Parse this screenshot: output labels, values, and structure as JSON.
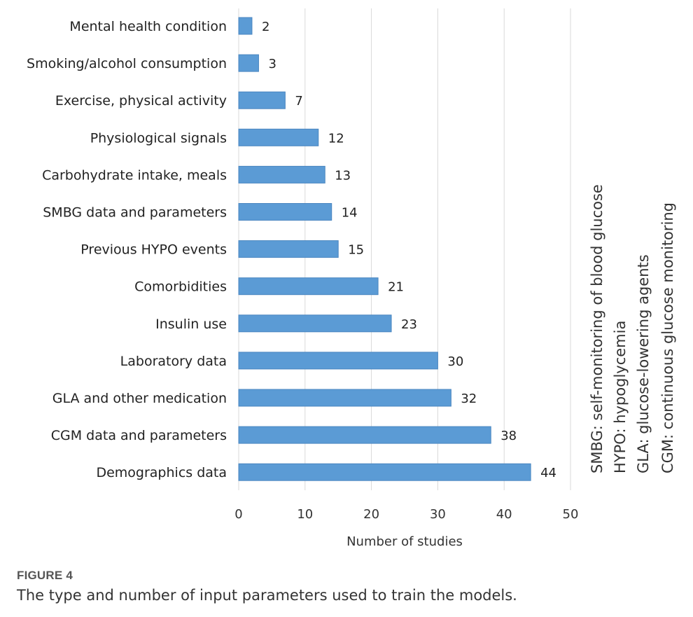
{
  "chart_data": {
    "type": "bar",
    "orientation": "horizontal",
    "categories": [
      "Mental health condition",
      "Smoking/alcohol consumption",
      "Exercise, physical activity",
      "Physiological signals",
      "Carbohydrate intake, meals",
      "SMBG data and parameters",
      "Previous HYPO events",
      "Comorbidities",
      "Insulin use",
      "Laboratory data",
      "GLA and other medication",
      "CGM data and parameters",
      "Demographics data"
    ],
    "values": [
      2,
      3,
      7,
      12,
      13,
      14,
      15,
      21,
      23,
      30,
      32,
      38,
      44
    ],
    "xlabel": "Number of studies",
    "xlim": [
      0,
      50
    ],
    "xticks": [
      0,
      10,
      20,
      30,
      40,
      50
    ],
    "grid": "vertical",
    "bar_color": "#5b9bd5",
    "bar_edge_color": "#4a86c0",
    "data_labels": true,
    "notes": [
      "SMBG: self-monitoring of blood glucose",
      "HYPO: hypoglycemia",
      "GLA: glucose-lowering agents",
      "CGM: continuous glucose monitoring"
    ]
  },
  "figure": {
    "label": "FIGURE 4",
    "caption": "The type and number of input parameters used to train the models."
  }
}
